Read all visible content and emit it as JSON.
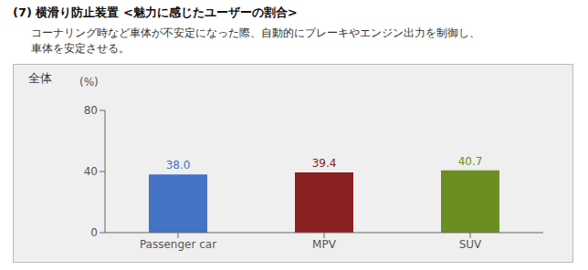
{
  "chart_data": {
    "type": "bar",
    "title": "(7) 横滑り防止装置 <魅力に感じたユーザーの割合>",
    "subtitle": [
      "コーナリング時など車体が不安定になった際、自動的にブレーキやエンジン出力を制御し、",
      "車体を安定させる。"
    ],
    "annotations": [
      "全体"
    ],
    "ylabel": "(%)",
    "categories": [
      "Passenger car",
      "MPV",
      "SUV"
    ],
    "values": [
      38.0,
      39.4,
      40.7
    ],
    "value_labels": [
      "38.0",
      "39.4",
      "40.7"
    ],
    "colors": [
      "#4472C4",
      "#8B2020",
      "#6B8E23"
    ],
    "ylim": [
      0,
      80
    ],
    "yticks": [
      0,
      40,
      80
    ],
    "grid": false,
    "data_labels": true
  }
}
